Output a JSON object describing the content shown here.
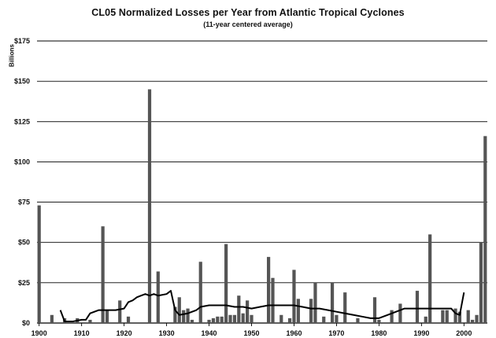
{
  "chart_data": {
    "type": "bar",
    "title": "CL05 Normalized Losses per Year from Atlantic Tropical Cyclones",
    "subtitle": "(11-year centered average)",
    "ylabel": "Billions",
    "xlabel": "",
    "ylim": [
      0,
      175
    ],
    "xlim": [
      1900,
      2005
    ],
    "grid": "horizontal",
    "y_ticks": [
      0,
      25,
      50,
      75,
      100,
      125,
      150,
      175
    ],
    "y_tick_labels": [
      "$0",
      "$25",
      "$50",
      "$75",
      "$100",
      "$125",
      "$150",
      "$175"
    ],
    "x_ticks": [
      1900,
      1910,
      1920,
      1930,
      1940,
      1950,
      1960,
      1970,
      1980,
      1990,
      2000
    ],
    "x_tick_labels": [
      "1900",
      "1910",
      "1920",
      "1930",
      "1940",
      "1950",
      "1960",
      "1970",
      "1980",
      "1990",
      "2000"
    ],
    "series": [
      {
        "type": "bar",
        "color": "#555555",
        "points": [
          [
            1900,
            73
          ],
          [
            1903,
            5
          ],
          [
            1906,
            3
          ],
          [
            1909,
            3
          ],
          [
            1912,
            2
          ],
          [
            1915,
            60
          ],
          [
            1916,
            8
          ],
          [
            1919,
            14
          ],
          [
            1921,
            4
          ],
          [
            1926,
            145
          ],
          [
            1928,
            32
          ],
          [
            1932,
            10
          ],
          [
            1933,
            16
          ],
          [
            1934,
            8
          ],
          [
            1935,
            9
          ],
          [
            1936,
            2
          ],
          [
            1938,
            38
          ],
          [
            1940,
            2
          ],
          [
            1941,
            3
          ],
          [
            1942,
            4
          ],
          [
            1943,
            4
          ],
          [
            1944,
            49
          ],
          [
            1945,
            5
          ],
          [
            1946,
            5
          ],
          [
            1947,
            17
          ],
          [
            1948,
            6
          ],
          [
            1949,
            14
          ],
          [
            1950,
            5
          ],
          [
            1954,
            41
          ],
          [
            1955,
            28
          ],
          [
            1957,
            5
          ],
          [
            1959,
            3
          ],
          [
            1960,
            33
          ],
          [
            1961,
            15
          ],
          [
            1964,
            15
          ],
          [
            1965,
            25
          ],
          [
            1967,
            4
          ],
          [
            1969,
            25
          ],
          [
            1970,
            5
          ],
          [
            1972,
            19
          ],
          [
            1975,
            3
          ],
          [
            1979,
            16
          ],
          [
            1980,
            2
          ],
          [
            1983,
            8
          ],
          [
            1985,
            12
          ],
          [
            1989,
            20
          ],
          [
            1991,
            4
          ],
          [
            1992,
            55
          ],
          [
            1995,
            8
          ],
          [
            1996,
            8
          ],
          [
            1998,
            9
          ],
          [
            1999,
            7
          ],
          [
            2001,
            8
          ],
          [
            2002,
            2
          ],
          [
            2003,
            5
          ],
          [
            2004,
            50
          ],
          [
            2005,
            116
          ]
        ]
      },
      {
        "type": "line",
        "color": "#000000",
        "points": [
          [
            1905,
            8
          ],
          [
            1906,
            1
          ],
          [
            1908,
            1
          ],
          [
            1910,
            2
          ],
          [
            1911,
            2
          ],
          [
            1912,
            6
          ],
          [
            1914,
            8
          ],
          [
            1916,
            8
          ],
          [
            1918,
            8
          ],
          [
            1920,
            9
          ],
          [
            1921,
            13
          ],
          [
            1922,
            14
          ],
          [
            1923,
            16
          ],
          [
            1924,
            17
          ],
          [
            1925,
            18
          ],
          [
            1926,
            17
          ],
          [
            1927,
            18
          ],
          [
            1928,
            17
          ],
          [
            1930,
            18
          ],
          [
            1931,
            20
          ],
          [
            1932,
            8
          ],
          [
            1933,
            5
          ],
          [
            1935,
            6
          ],
          [
            1937,
            8
          ],
          [
            1938,
            10
          ],
          [
            1940,
            11
          ],
          [
            1942,
            11
          ],
          [
            1944,
            11
          ],
          [
            1946,
            10
          ],
          [
            1948,
            10
          ],
          [
            1950,
            9
          ],
          [
            1952,
            10
          ],
          [
            1954,
            11
          ],
          [
            1956,
            11
          ],
          [
            1958,
            11
          ],
          [
            1960,
            11
          ],
          [
            1962,
            10
          ],
          [
            1964,
            9
          ],
          [
            1966,
            9
          ],
          [
            1968,
            8
          ],
          [
            1970,
            7
          ],
          [
            1972,
            6
          ],
          [
            1974,
            5
          ],
          [
            1976,
            4
          ],
          [
            1978,
            3
          ],
          [
            1980,
            3
          ],
          [
            1982,
            5
          ],
          [
            1984,
            7
          ],
          [
            1986,
            9
          ],
          [
            1988,
            9
          ],
          [
            1990,
            9
          ],
          [
            1992,
            9
          ],
          [
            1994,
            9
          ],
          [
            1996,
            9
          ],
          [
            1997,
            9
          ],
          [
            1998,
            6
          ],
          [
            1999,
            5
          ],
          [
            2000,
            19
          ]
        ]
      }
    ]
  }
}
